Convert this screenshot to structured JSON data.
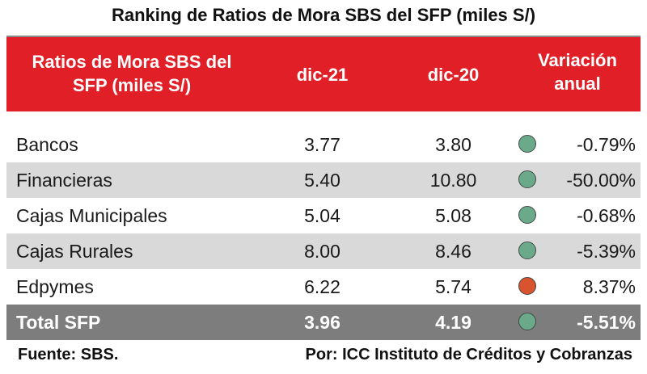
{
  "title": "Ranking de Ratios de Mora SBS del SFP (miles S/)",
  "header": {
    "concept_line1": "Ratios de Mora SBS del",
    "concept_line2": "SFP (miles S/)",
    "col_dic21": "dic-21",
    "col_dic20": "dic-20",
    "variation_line1": "Variación",
    "variation_line2": "anual"
  },
  "colors": {
    "header_bg": "#e11f26",
    "green_indicator": "#6aaa8a",
    "red_indicator": "#d9532f",
    "total_bg": "#7d7d7d",
    "shaded_row_bg": "#d9d9d9"
  },
  "rows": [
    {
      "name": "Bancos",
      "dic21": "3.77",
      "dic20": "3.80",
      "indicator": "green",
      "variation": "-0.79%"
    },
    {
      "name": "Financieras",
      "dic21": "5.40",
      "dic20": "10.80",
      "indicator": "green",
      "variation": "-50.00%"
    },
    {
      "name": "Cajas Municipales",
      "dic21": "5.04",
      "dic20": "5.08",
      "indicator": "green",
      "variation": "-0.68%"
    },
    {
      "name": "Cajas Rurales",
      "dic21": "8.00",
      "dic20": "8.46",
      "indicator": "green",
      "variation": "-5.39%"
    },
    {
      "name": "Edpymes",
      "dic21": "6.22",
      "dic20": "5.74",
      "indicator": "red",
      "variation": "8.37%"
    }
  ],
  "total": {
    "name": "Total SFP",
    "dic21": "3.96",
    "dic20": "4.19",
    "indicator": "green",
    "variation": "-5.51%"
  },
  "footer": {
    "source": "Fuente: SBS.",
    "credit": "Por: ICC Instituto de Créditos y Cobranzas"
  }
}
